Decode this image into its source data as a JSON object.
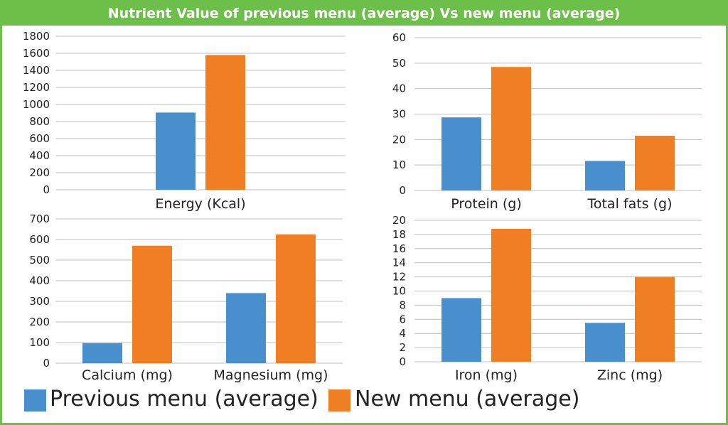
{
  "title": "Nutrient Value of previous menu (average) Vs new menu (average)",
  "colors": {
    "frame": "#6cc04a",
    "previous": "#4a8fcd",
    "new": "#f07f24",
    "grid": "#bfbfbf",
    "text": "#222222"
  },
  "legend": [
    {
      "name": "Previous menu (average)",
      "color": "#4a8fcd"
    },
    {
      "name": "New menu (average)",
      "color": "#f07f24"
    }
  ],
  "chart_data": [
    {
      "type": "bar",
      "categories": [
        "Energy (Kcal)"
      ],
      "series": [
        {
          "name": "Previous menu (average)",
          "values": [
            905
          ]
        },
        {
          "name": "New menu (average)",
          "values": [
            1580
          ]
        }
      ],
      "ylim": [
        0,
        1800
      ],
      "yticks": [
        "0",
        "200",
        "400",
        "600",
        "800",
        "1000",
        "1200",
        "1400",
        "1600",
        "1800"
      ],
      "grid": true
    },
    {
      "type": "bar",
      "categories": [
        "Protein (g)",
        "Total fats (g)"
      ],
      "series": [
        {
          "name": "Previous menu (average)",
          "values": [
            28.7,
            11.6
          ]
        },
        {
          "name": "New menu (average)",
          "values": [
            48.5,
            21.5
          ]
        }
      ],
      "ylim": [
        0,
        60
      ],
      "yticks": [
        "0",
        "10",
        "20",
        "30",
        "40",
        "50",
        "60"
      ],
      "grid": true
    },
    {
      "type": "bar",
      "categories": [
        "Calcium (mg)",
        "Magnesium (mg)"
      ],
      "series": [
        {
          "name": "Previous menu (average)",
          "values": [
            97,
            340
          ]
        },
        {
          "name": "New menu (average)",
          "values": [
            570,
            625
          ]
        }
      ],
      "ylim": [
        0,
        700
      ],
      "yticks": [
        "0",
        "100",
        "200",
        "300",
        "400",
        "500",
        "600",
        "700"
      ],
      "grid": true
    },
    {
      "type": "bar",
      "categories": [
        "Iron (mg)",
        "Zinc (mg)"
      ],
      "series": [
        {
          "name": "Previous menu (average)",
          "values": [
            9.0,
            5.5
          ]
        },
        {
          "name": "New menu (average)",
          "values": [
            18.8,
            12.0
          ]
        }
      ],
      "ylim": [
        0,
        20
      ],
      "yticks": [
        "0",
        "2",
        "4",
        "6",
        "8",
        "10",
        "12",
        "14",
        "16",
        "18",
        "20"
      ],
      "grid": true
    }
  ]
}
